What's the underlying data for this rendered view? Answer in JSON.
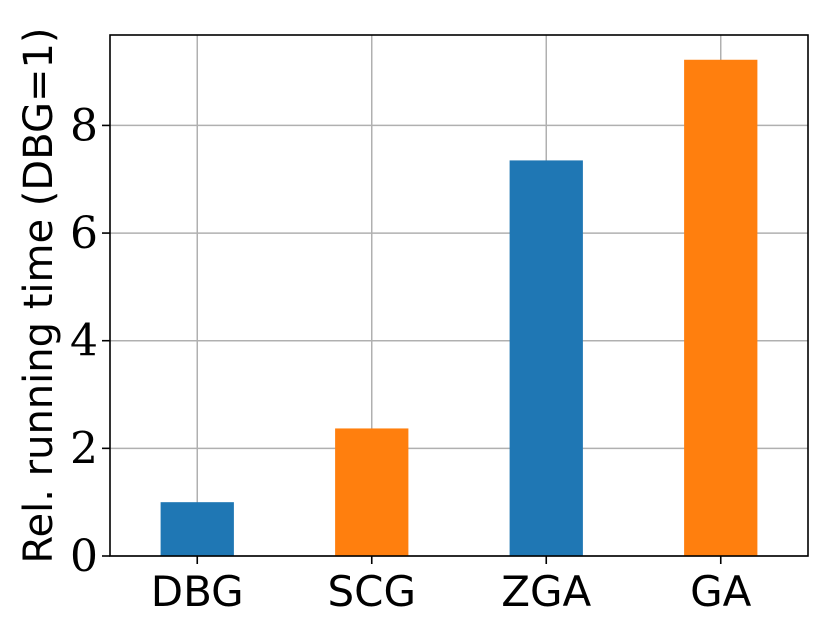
{
  "chart_data": {
    "type": "bar",
    "categories": [
      "DBG",
      "SCG",
      "ZGA",
      "GA"
    ],
    "values": [
      1.0,
      2.37,
      7.35,
      9.22
    ],
    "bar_colors": [
      "#1f77b4",
      "#ff7f0e",
      "#1f77b4",
      "#ff7f0e"
    ],
    "title": "",
    "xlabel": "",
    "ylabel": "Rel. running time (DBG=1)",
    "ylim": [
      0,
      9.68
    ],
    "yticks": [
      0,
      2,
      4,
      6,
      8
    ],
    "ytick_labels": [
      "0",
      "2",
      "4",
      "6",
      "8"
    ],
    "grid": true,
    "legend": false
  }
}
